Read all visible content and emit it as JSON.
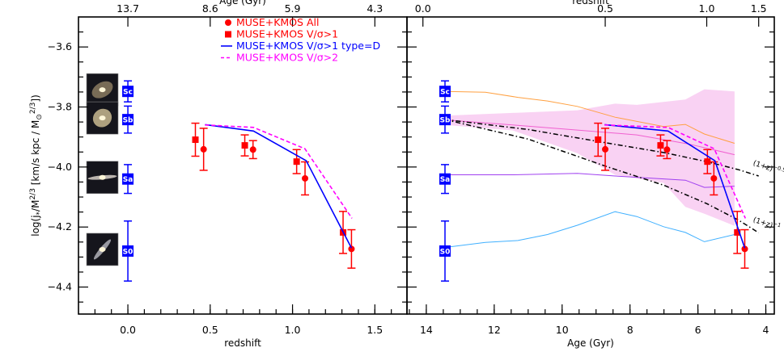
{
  "chart_data": [
    {
      "type": "scatter",
      "panel": "left",
      "xlabel": "redshift",
      "ylabel": "log(j*/M^2/3 [km/s kpc / M⊙^(2/3)])",
      "ylabel_parts": {
        "a": "log(j",
        "sub": "*",
        "b": "/M",
        "sup": "2/3",
        "c": " [km/s kpc / M",
        "sub2": "⊙",
        "sup2": "2/3",
        "d": "])"
      },
      "top_axis_label": "Age (Gyr)",
      "xlim": [
        -0.3,
        1.695
      ],
      "ylim": [
        -4.49,
        -3.5
      ],
      "xticks": [
        0.0,
        0.5,
        1.0,
        1.5
      ],
      "xtick_labels": [
        "0.0",
        "0.5",
        "1.0",
        "1.5"
      ],
      "yticks": [
        -3.6,
        -3.8,
        -4.0,
        -4.2,
        -4.4
      ],
      "ytick_labels": [
        "−3.6",
        "−3.8",
        "−4.0",
        "−4.2",
        "−4.4"
      ],
      "top_ticks_z": [
        0.0,
        0.5,
        1.0,
        1.5
      ],
      "top_tick_labels": [
        "13.7",
        "8.6",
        "5.9",
        "4.3"
      ],
      "legend": {
        "placement": "top",
        "entries": [
          {
            "label": "MUSE+KMOS All",
            "marker": "circle",
            "color": "#ff0000"
          },
          {
            "label": "MUSE+KMOS V/σ>1",
            "marker": "square",
            "color": "#ff0000"
          },
          {
            "label": "MUSE+KMOS V/σ>1  type=D",
            "marker": "solid-line",
            "color": "#0000ff"
          },
          {
            "label": "MUSE+KMOS V/σ>2",
            "marker": "dashed-line",
            "color": "#ff00ff"
          }
        ]
      },
      "series": [
        {
          "name": "MUSE+KMOS All",
          "marker": "circle",
          "color": "#ff0000",
          "x": [
            0.46,
            0.76,
            1.076,
            1.358
          ],
          "y": [
            -3.941,
            -3.942,
            -4.038,
            -4.273
          ],
          "yerr": [
            0.07,
            0.03,
            0.055,
            0.064
          ]
        },
        {
          "name": "MUSE+KMOS V/σ>1",
          "marker": "square",
          "color": "#ff0000",
          "x": [
            0.41,
            0.71,
            1.025,
            1.307
          ],
          "y": [
            -3.909,
            -3.928,
            -3.982,
            -4.218
          ],
          "yerr": [
            0.055,
            0.035,
            0.04,
            0.07
          ]
        },
        {
          "name": "MUSE+KMOS V/σ>1  type=D",
          "style": "solid",
          "color": "#0000ff",
          "x": [
            0.468,
            0.763,
            1.083,
            1.358
          ],
          "y": [
            -3.859,
            -3.88,
            -3.979,
            -4.27
          ]
        },
        {
          "name": "MUSE+KMOS V/σ>2",
          "style": "dashed",
          "color": "#ff00ff",
          "x": [
            0.468,
            0.763,
            1.075,
            1.361
          ],
          "y": [
            -3.86,
            -3.868,
            -3.939,
            -4.171
          ]
        }
      ],
      "reference_types": [
        {
          "label": "Sc",
          "x": 0.0,
          "y": -3.748,
          "yerr": 0.035,
          "thumbnail": "spiral-galaxy"
        },
        {
          "label": "Sb",
          "x": 0.0,
          "y": -3.842,
          "yerr": 0.045,
          "thumbnail": "spiral-bulge-galaxy"
        },
        {
          "label": "Sa",
          "x": 0.0,
          "y": -4.04,
          "yerr": 0.048,
          "thumbnail": "edge-on-sombrero-galaxy"
        },
        {
          "label": "S0",
          "x": 0.0,
          "y": -4.28,
          "yerr": 0.1,
          "thumbnail": "lenticular-galaxy"
        }
      ],
      "reference_color": "#0000ff"
    },
    {
      "type": "line",
      "panel": "right",
      "xlabel": "Age (Gyr)",
      "top_axis_label": "redshift",
      "xlim": [
        14.57,
        3.75
      ],
      "ylim": [
        -4.49,
        -3.5
      ],
      "xticks": [
        14,
        12,
        10,
        8,
        6,
        4
      ],
      "xtick_labels": [
        "14",
        "12",
        "10",
        "8",
        "6",
        "4"
      ],
      "top_ticks_age": [
        14.1,
        8.73,
        5.74,
        4.21
      ],
      "top_tick_labels": [
        "0.0",
        "0.5",
        "1.0",
        "1.5"
      ],
      "band": {
        "color": "#f9d2f3",
        "upper": {
          "x": [
            13.45,
            9.55,
            8.44,
            7.8,
            6.37,
            5.81,
            4.92
          ],
          "y": [
            -3.829,
            -3.811,
            -3.789,
            -3.793,
            -3.775,
            -3.741,
            -3.748
          ]
        },
        "lower": {
          "x": [
            13.45,
            11.46,
            9.55,
            8.44,
            7.01,
            6.37,
            5.81,
            4.92
          ],
          "y": [
            -3.86,
            -3.878,
            -3.954,
            -4.026,
            -4.053,
            -4.133,
            -4.156,
            -4.196
          ]
        }
      },
      "model_tracks": [
        {
          "color": "#ffa040",
          "x": [
            13.45,
            12.26,
            11.3,
            10.43,
            9.55,
            8.44,
            7.01,
            6.37,
            5.81,
            4.92
          ],
          "y": [
            -3.748,
            -3.751,
            -3.768,
            -3.78,
            -3.798,
            -3.834,
            -3.865,
            -3.858,
            -3.89,
            -3.921
          ]
        },
        {
          "color": "#f060d0",
          "x": [
            13.45,
            11.46,
            9.55,
            7.8,
            6.29,
            4.92
          ],
          "y": [
            -3.843,
            -3.86,
            -3.877,
            -3.893,
            -3.923,
            -3.959
          ]
        },
        {
          "color": "#a040f0",
          "x": [
            13.45,
            11.46,
            9.55,
            8.44,
            6.37,
            5.81,
            4.92
          ],
          "y": [
            -4.026,
            -4.026,
            -4.021,
            -4.03,
            -4.044,
            -4.068,
            -4.064
          ]
        },
        {
          "color": "#40b0ff",
          "x": [
            13.45,
            12.26,
            11.3,
            10.43,
            9.55,
            8.44,
            7.8,
            7.01,
            6.37,
            5.81,
            4.92
          ],
          "y": [
            -4.268,
            -4.251,
            -4.245,
            -4.225,
            -4.194,
            -4.149,
            -4.165,
            -4.199,
            -4.218,
            -4.249,
            -4.225
          ]
        }
      ],
      "scaling_relations": [
        {
          "label": "(1+z)",
          "exponent": "−0.5",
          "x": [
            13.45,
            11.0,
            8.73,
            7.0,
            5.74,
            4.8,
            4.21
          ],
          "y": [
            -3.842,
            -3.875,
            -3.919,
            -3.952,
            -3.982,
            -4.009,
            -4.03
          ]
        },
        {
          "label": "(1+z)",
          "exponent": "−1",
          "x": [
            13.45,
            11.0,
            8.73,
            7.0,
            5.74,
            4.8,
            4.21
          ],
          "y": [
            -3.842,
            -3.907,
            -3.997,
            -4.061,
            -4.122,
            -4.177,
            -4.219
          ]
        }
      ],
      "series": [
        {
          "name": "MUSE+KMOS All",
          "marker": "circle",
          "color": "#ff0000",
          "x": [
            8.73,
            6.91,
            5.53,
            4.62
          ],
          "y": [
            -3.941,
            -3.942,
            -4.038,
            -4.273
          ],
          "yerr": [
            0.07,
            0.03,
            0.055,
            0.064
          ]
        },
        {
          "name": "MUSE+KMOS V/σ>1",
          "marker": "square",
          "color": "#ff0000",
          "x": [
            8.94,
            7.1,
            5.72,
            4.84
          ],
          "y": [
            -3.909,
            -3.928,
            -3.982,
            -4.218
          ],
          "yerr": [
            0.055,
            0.035,
            0.04,
            0.07
          ]
        },
        {
          "name": "MUSE+KMOS V/σ>1  type=D",
          "style": "solid",
          "color": "#0000ff",
          "x": [
            8.75,
            6.88,
            5.5,
            4.62
          ],
          "y": [
            -3.859,
            -3.88,
            -3.979,
            -4.27
          ]
        },
        {
          "name": "MUSE+KMOS V/σ>2",
          "style": "dashed",
          "color": "#ff00ff",
          "x": [
            8.75,
            6.88,
            5.52,
            4.6
          ],
          "y": [
            -3.86,
            -3.868,
            -3.939,
            -4.171
          ]
        }
      ],
      "reference_types": [
        {
          "label": "Sc",
          "x": 13.45,
          "y": -3.748,
          "yerr": 0.035
        },
        {
          "label": "Sb",
          "x": 13.45,
          "y": -3.842,
          "yerr": 0.045
        },
        {
          "label": "Sa",
          "x": 13.45,
          "y": -4.04,
          "yerr": 0.048
        },
        {
          "label": "S0",
          "x": 13.45,
          "y": -4.28,
          "yerr": 0.1
        }
      ]
    }
  ]
}
